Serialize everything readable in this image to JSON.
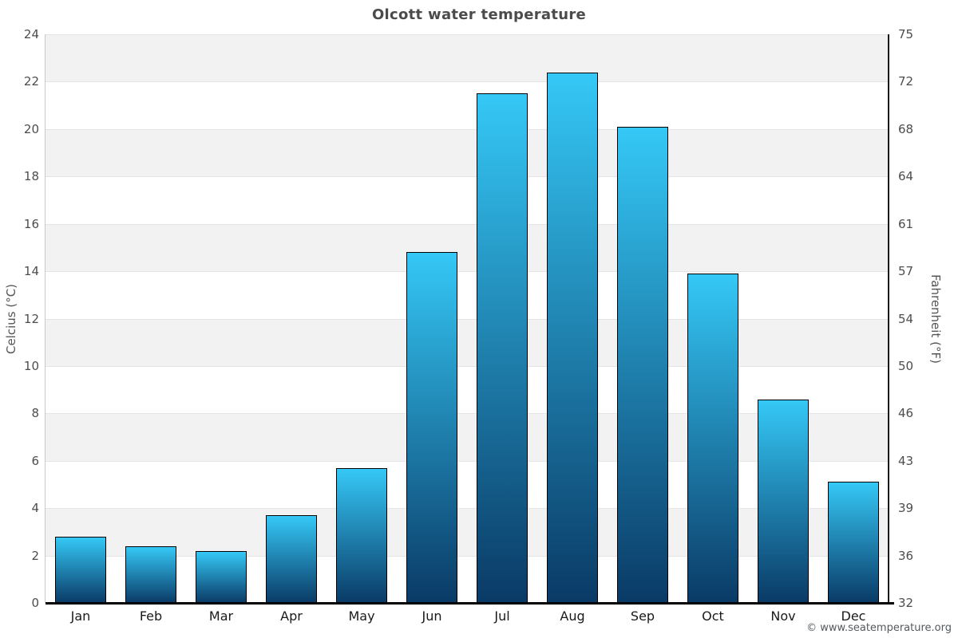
{
  "title": "Olcott water temperature",
  "copyright": "© www.seatemperature.org",
  "chart_data": {
    "type": "bar",
    "title": "Olcott water temperature",
    "categories": [
      "Jan",
      "Feb",
      "Mar",
      "Apr",
      "May",
      "Jun",
      "Jul",
      "Aug",
      "Sep",
      "Oct",
      "Nov",
      "Dec"
    ],
    "values": [
      2.8,
      2.4,
      2.2,
      3.7,
      5.7,
      14.8,
      21.5,
      22.4,
      20.1,
      13.9,
      8.6,
      5.1
    ],
    "xlabel": "",
    "ylabel_left": "Celcius (°C)",
    "ylabel_right": "Fahrenheit (°F)",
    "ylim_celsius": [
      0,
      24
    ],
    "yticks_celsius": [
      0,
      2,
      4,
      6,
      8,
      10,
      12,
      14,
      16,
      18,
      20,
      22,
      24
    ],
    "yticks_fahrenheit": [
      "32",
      "36",
      "39",
      "43",
      "46",
      "50",
      "54",
      "57",
      "61",
      "64",
      "68",
      "72",
      "75"
    ],
    "grid": true,
    "legend": "none",
    "colors": {
      "bar_gradient_top": "#35c8f6",
      "bar_gradient_bottom": "#0a3a66",
      "bar_border": "#000000",
      "band_fill": "#f2f2f2",
      "grid_line": "#e4e4e4",
      "title_text": "#4b4b4b",
      "tick_text": "#4d4d4d",
      "axis_bottom": "#000000"
    }
  }
}
